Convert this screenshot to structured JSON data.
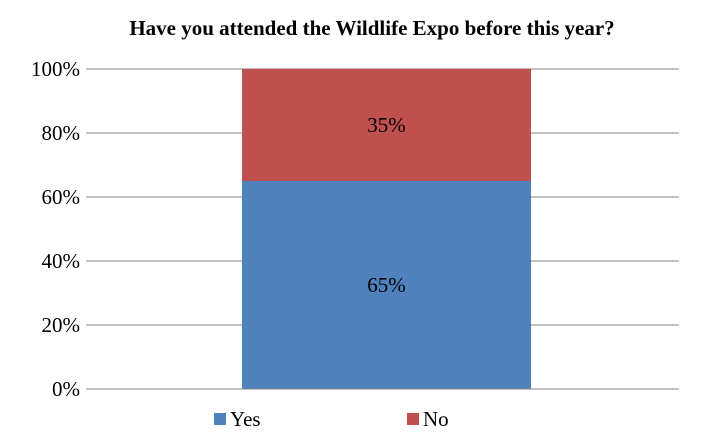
{
  "chart_data": {
    "type": "bar",
    "stacked": true,
    "percent": true,
    "title": "Have you attended the Wildlife Expo before this year?",
    "xlabel": "",
    "ylabel": "",
    "categories": [
      ""
    ],
    "ylim": [
      0,
      100
    ],
    "yticks": [
      "0%",
      "20%",
      "40%",
      "60%",
      "80%",
      "100%"
    ],
    "grid": true,
    "legend_position": "bottom",
    "series": [
      {
        "name": "Yes",
        "values": [
          65
        ],
        "label": "65%",
        "color": "#4F81BD"
      },
      {
        "name": "No",
        "values": [
          35
        ],
        "label": "35%",
        "color": "#C0504D"
      }
    ]
  }
}
